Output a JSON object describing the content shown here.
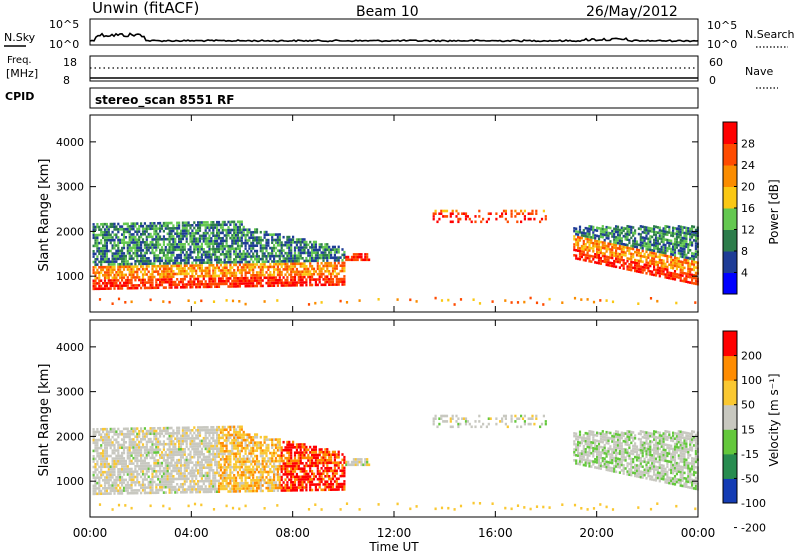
{
  "header": {
    "station": "Unwin (fitACF)",
    "beam": "Beam 10",
    "date": "26/May/2012"
  },
  "top_panels": {
    "nsky_label": "N.Sky",
    "nsky_ticks": [
      "10^5",
      "10^0"
    ],
    "nsearch_label": "N.Search",
    "nsearch_ticks": [
      "10^5",
      "10^0"
    ],
    "freq_label": "Freq.",
    "freq_unit": "[MHz]",
    "freq_ticks": [
      "18",
      "8"
    ],
    "nave_label": "Nave",
    "nave_ticks": [
      "60",
      "0"
    ],
    "cpid_label": "CPID",
    "cpid_text": "stereo_scan 8551 RF"
  },
  "chart_data": [
    {
      "type": "heatmap",
      "name": "power",
      "ylabel": "Slant Range [km]",
      "ylim": [
        200,
        4600
      ],
      "yticks": [
        "1000",
        "2000",
        "3000",
        "4000"
      ],
      "xlim_hours": [
        0,
        24
      ],
      "colorbar_label": "Power [dB]",
      "colorbar_ticks": [
        "28",
        "24",
        "20",
        "16",
        "12",
        "8",
        "4"
      ],
      "colors": [
        "#0000ff",
        "#1e3c96",
        "#2d7d4b",
        "#64c850",
        "#fac814",
        "#fa8c00",
        "#ff4b00",
        "#ff0000"
      ]
    },
    {
      "type": "heatmap",
      "name": "velocity",
      "ylabel": "Slant Range [km]",
      "ylim": [
        200,
        4600
      ],
      "yticks": [
        "1000",
        "2000",
        "3000",
        "4000"
      ],
      "xlim_hours": [
        0,
        24
      ],
      "colorbar_label": "Velocity [m s⁻¹]",
      "colorbar_ticks": [
        "200",
        "100",
        "50",
        "15",
        "-15",
        "-50",
        "-100",
        "-200"
      ],
      "colors": [
        "#143cb4",
        "#288c50",
        "#64c83c",
        "#c8c8c0",
        "#fac832",
        "#ff8c00",
        "#ff0000"
      ]
    }
  ],
  "xaxis": {
    "label": "Time UT",
    "ticks": [
      "00:00",
      "04:00",
      "08:00",
      "12:00",
      "16:00",
      "20:00",
      "00:00"
    ]
  }
}
